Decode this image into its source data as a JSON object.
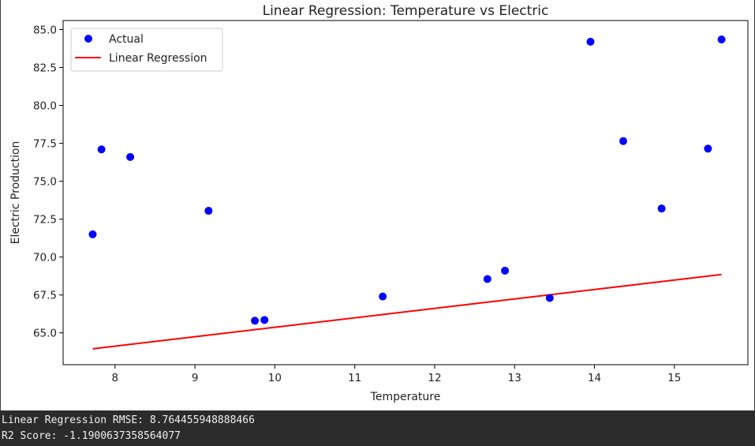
{
  "chart_data": {
    "type": "scatter",
    "title": "Linear Regression: Temperature vs Electric",
    "xlabel": "Temperature",
    "ylabel": "Electric Production",
    "xlim": [
      7.35,
      15.92
    ],
    "ylim": [
      62.9,
      85.6
    ],
    "xticks": [
      8,
      9,
      10,
      11,
      12,
      13,
      14,
      15
    ],
    "yticks": [
      65.0,
      67.5,
      70.0,
      72.5,
      75.0,
      77.5,
      80.0,
      82.5,
      85.0
    ],
    "ytick_labels": [
      "65.0",
      "67.5",
      "70.0",
      "72.5",
      "75.0",
      "77.5",
      "80.0",
      "82.5",
      "85.0"
    ],
    "grid": false,
    "legend_position": "top-left",
    "series": [
      {
        "name": "Actual",
        "kind": "scatter",
        "color": "#0000ff",
        "x": [
          7.72,
          7.83,
          8.19,
          9.17,
          9.75,
          9.87,
          11.35,
          12.66,
          12.88,
          13.44,
          13.95,
          14.36,
          14.84,
          15.42,
          15.59
        ],
        "y": [
          71.5,
          77.1,
          76.6,
          73.05,
          65.8,
          65.85,
          67.4,
          68.55,
          69.1,
          67.3,
          84.2,
          77.65,
          73.2,
          77.15,
          84.35
        ]
      },
      {
        "name": "Linear Regression",
        "kind": "line",
        "color": "#ff0000",
        "x": [
          7.72,
          15.59
        ],
        "y": [
          63.95,
          68.85
        ]
      }
    ]
  },
  "console": {
    "line1": "Linear Regression RMSE: 8.764455948888466",
    "line2": "R2 Score: -1.1900637358564077"
  }
}
